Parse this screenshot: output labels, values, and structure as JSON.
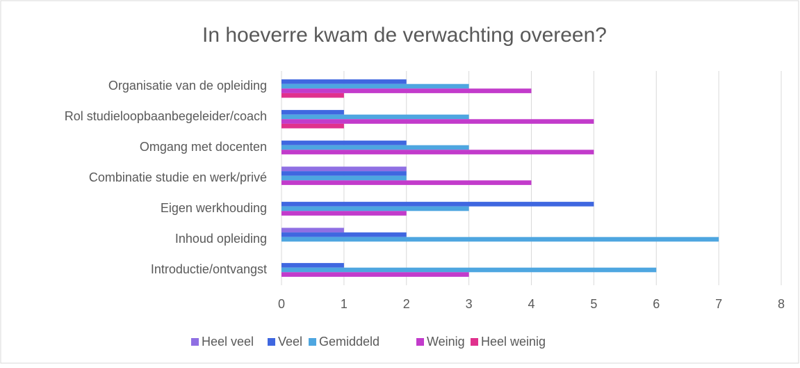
{
  "chart_data": {
    "type": "bar",
    "orientation": "horizontal",
    "title": "In hoeverre kwam de verwachting overeen?",
    "categories": [
      "Organisatie van de opleiding",
      "Rol studieloopbaanbegeleider/coach",
      "Omgang met docenten",
      "Combinatie studie en werk/privé",
      "Eigen werkhouding",
      "Inhoud opleiding",
      "Introductie/ontvangst"
    ],
    "series": [
      {
        "name": "Heel veel",
        "color": "#8f6fe3",
        "values": [
          0,
          0,
          0,
          2,
          0,
          1,
          0
        ]
      },
      {
        "name": "Veel",
        "color": "#3f67e0",
        "values": [
          2,
          1,
          2,
          2,
          5,
          2,
          1
        ]
      },
      {
        "name": "Gemiddeld",
        "color": "#4ea6e0",
        "values": [
          3,
          3,
          3,
          2,
          3,
          7,
          6
        ]
      },
      {
        "name": "Weinig",
        "color": "#c23bcb",
        "values": [
          4,
          5,
          5,
          4,
          2,
          0,
          3
        ]
      },
      {
        "name": "Heel weinig",
        "color": "#e0318d",
        "values": [
          1,
          1,
          0,
          0,
          0,
          0,
          0
        ]
      }
    ],
    "xlim": [
      0,
      8
    ],
    "xticks": [
      0,
      1,
      2,
      3,
      4,
      5,
      6,
      7,
      8
    ],
    "grid": true,
    "legend": "bottom"
  }
}
